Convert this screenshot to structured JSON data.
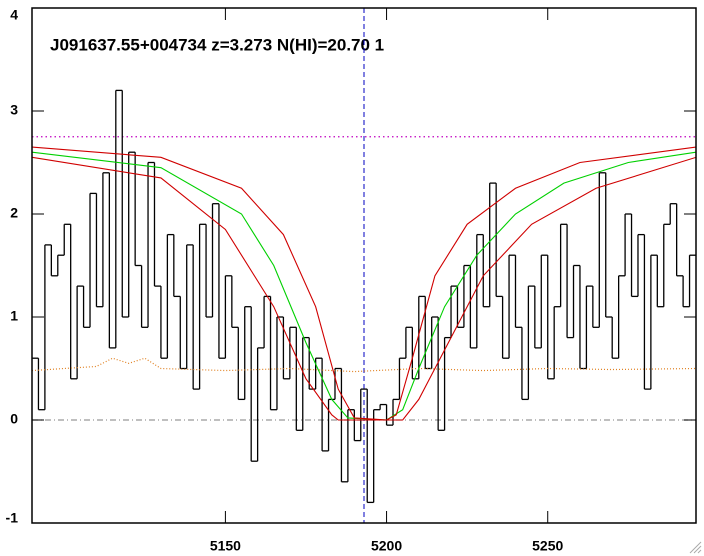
{
  "chart_data": {
    "type": "line",
    "title": "J091637.55+004734 z=3.273 N(HI)=20.70 1",
    "xlim": [
      5090,
      5296
    ],
    "ylim": [
      -1,
      4
    ],
    "xticks": [
      5150,
      5200,
      5250
    ],
    "yticks": [
      -1,
      0,
      1,
      2,
      3,
      4
    ],
    "hlines": [
      {
        "value": 2.75,
        "color": "#c000c0"
      },
      {
        "value": 0,
        "color": "#999999"
      }
    ],
    "vline": {
      "value": 5193,
      "color": "#0000c0"
    },
    "series": [
      {
        "name": "flux",
        "style": "step",
        "color": "#000000",
        "x": [
          5091,
          5093,
          5095,
          5097,
          5099,
          5101,
          5103,
          5105,
          5107,
          5109,
          5111,
          5113,
          5115,
          5117,
          5119,
          5121,
          5123,
          5125,
          5127,
          5129,
          5131,
          5133,
          5135,
          5137,
          5139,
          5141,
          5143,
          5145,
          5147,
          5149,
          5151,
          5153,
          5155,
          5157,
          5159,
          5161,
          5163,
          5165,
          5167,
          5169,
          5171,
          5173,
          5175,
          5177,
          5179,
          5181,
          5183,
          5185,
          5187,
          5189,
          5191,
          5193,
          5195,
          5197,
          5199,
          5201,
          5203,
          5205,
          5207,
          5209,
          5211,
          5213,
          5215,
          5217,
          5219,
          5221,
          5223,
          5225,
          5227,
          5229,
          5231,
          5233,
          5235,
          5237,
          5239,
          5241,
          5243,
          5245,
          5247,
          5249,
          5251,
          5253,
          5255,
          5257,
          5259,
          5261,
          5263,
          5265,
          5267,
          5269,
          5271,
          5273,
          5275,
          5277,
          5279,
          5281,
          5283,
          5285,
          5287,
          5289,
          5291,
          5293,
          5295
        ],
        "values": [
          0.6,
          0.1,
          1.7,
          1.4,
          1.6,
          1.9,
          0.4,
          1.3,
          0.9,
          2.2,
          1.1,
          2.4,
          0.7,
          3.2,
          1.0,
          2.6,
          1.5,
          0.9,
          2.5,
          1.3,
          0.6,
          1.8,
          1.2,
          0.5,
          1.7,
          0.3,
          1.9,
          1.0,
          2.1,
          0.6,
          1.4,
          0.9,
          0.2,
          1.1,
          -0.4,
          0.7,
          1.2,
          0.1,
          1.0,
          0.4,
          0.9,
          -0.1,
          0.8,
          0.3,
          0.6,
          -0.3,
          0.2,
          0.5,
          -0.6,
          0.1,
          -0.2,
          0.3,
          -0.8,
          0.1,
          0.15,
          -0.05,
          0.2,
          0.6,
          0.9,
          0.4,
          1.2,
          0.5,
          1.0,
          -0.1,
          0.8,
          1.3,
          0.9,
          1.5,
          0.7,
          1.8,
          1.1,
          2.3,
          1.2,
          0.6,
          1.6,
          0.9,
          0.2,
          1.3,
          0.7,
          1.6,
          0.4,
          1.1,
          1.9,
          0.8,
          1.5,
          0.5,
          1.3,
          0.9,
          2.4,
          1.0,
          0.6,
          1.4,
          2.0,
          1.2,
          1.8,
          0.3,
          1.6,
          1.1,
          1.9,
          2.1,
          1.4,
          1.1,
          1.6
        ]
      },
      {
        "name": "error",
        "style": "dotted",
        "color": "#e08020",
        "x": [
          5090,
          5100,
          5110,
          5115,
          5120,
          5125,
          5130,
          5150,
          5170,
          5190,
          5210,
          5230,
          5250,
          5270,
          5296
        ],
        "values": [
          0.48,
          0.5,
          0.52,
          0.6,
          0.55,
          0.6,
          0.5,
          0.48,
          0.5,
          0.47,
          0.5,
          0.48,
          0.5,
          0.49,
          0.5
        ]
      },
      {
        "name": "model",
        "style": "solid",
        "color": "#00d000",
        "x": [
          5090,
          5130,
          5155,
          5165,
          5175,
          5183,
          5188,
          5200,
          5205,
          5210,
          5218,
          5228,
          5240,
          5255,
          5275,
          5296
        ],
        "values": [
          2.6,
          2.45,
          2.0,
          1.5,
          0.75,
          0.2,
          0.02,
          0,
          0.1,
          0.5,
          1.1,
          1.6,
          2.0,
          2.3,
          2.5,
          2.6
        ]
      },
      {
        "name": "upper",
        "style": "solid",
        "color": "#d00000",
        "x": [
          5090,
          5130,
          5155,
          5168,
          5178,
          5185,
          5190,
          5200,
          5203,
          5208,
          5215,
          5225,
          5240,
          5260,
          5296
        ],
        "values": [
          2.65,
          2.55,
          2.25,
          1.8,
          1.1,
          0.3,
          0.02,
          0,
          0.05,
          0.6,
          1.4,
          1.9,
          2.25,
          2.5,
          2.65
        ]
      },
      {
        "name": "lower",
        "style": "solid",
        "color": "#d00000",
        "x": [
          5090,
          5130,
          5150,
          5165,
          5175,
          5183,
          5185,
          5205,
          5210,
          5220,
          5230,
          5245,
          5265,
          5296
        ],
        "values": [
          2.55,
          2.35,
          1.85,
          1.1,
          0.4,
          0.05,
          0,
          0,
          0.2,
          0.8,
          1.4,
          1.9,
          2.25,
          2.55
        ]
      }
    ]
  }
}
